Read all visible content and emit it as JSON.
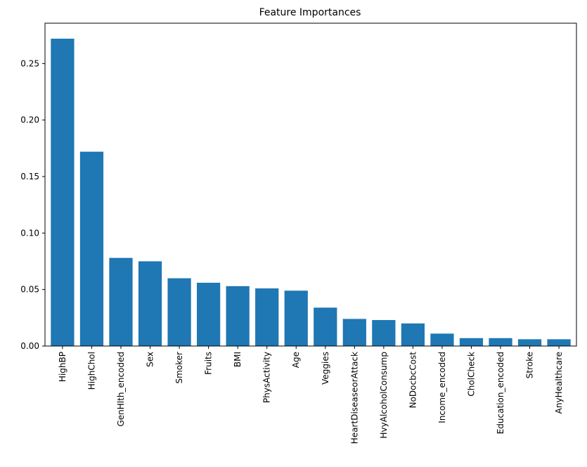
{
  "chart_data": {
    "type": "bar",
    "title": "Feature Importances",
    "xlabel": "",
    "ylabel": "",
    "categories": [
      "HighBP",
      "HighChol",
      "GenHlth_encoded",
      "Sex",
      "Smoker",
      "Fruits",
      "BMI",
      "PhysActivity",
      "Age",
      "Veggies",
      "HeartDiseaseorAttack",
      "HvyAlcoholConsump",
      "NoDocbcCost",
      "Income_encoded",
      "CholCheck",
      "Education_encoded",
      "Stroke",
      "AnyHealthcare"
    ],
    "values": [
      0.272,
      0.172,
      0.078,
      0.075,
      0.06,
      0.056,
      0.053,
      0.051,
      0.049,
      0.034,
      0.024,
      0.023,
      0.02,
      0.011,
      0.007,
      0.007,
      0.006,
      0.006
    ],
    "ylim": [
      0,
      0.2857
    ],
    "yticks": [
      0.0,
      0.05,
      0.1,
      0.15,
      0.2,
      0.25
    ],
    "ytick_labels": [
      "0.00",
      "0.05",
      "0.10",
      "0.15",
      "0.20",
      "0.25"
    ],
    "bar_color": "#1f77b4",
    "grid": false,
    "legend": "none"
  }
}
